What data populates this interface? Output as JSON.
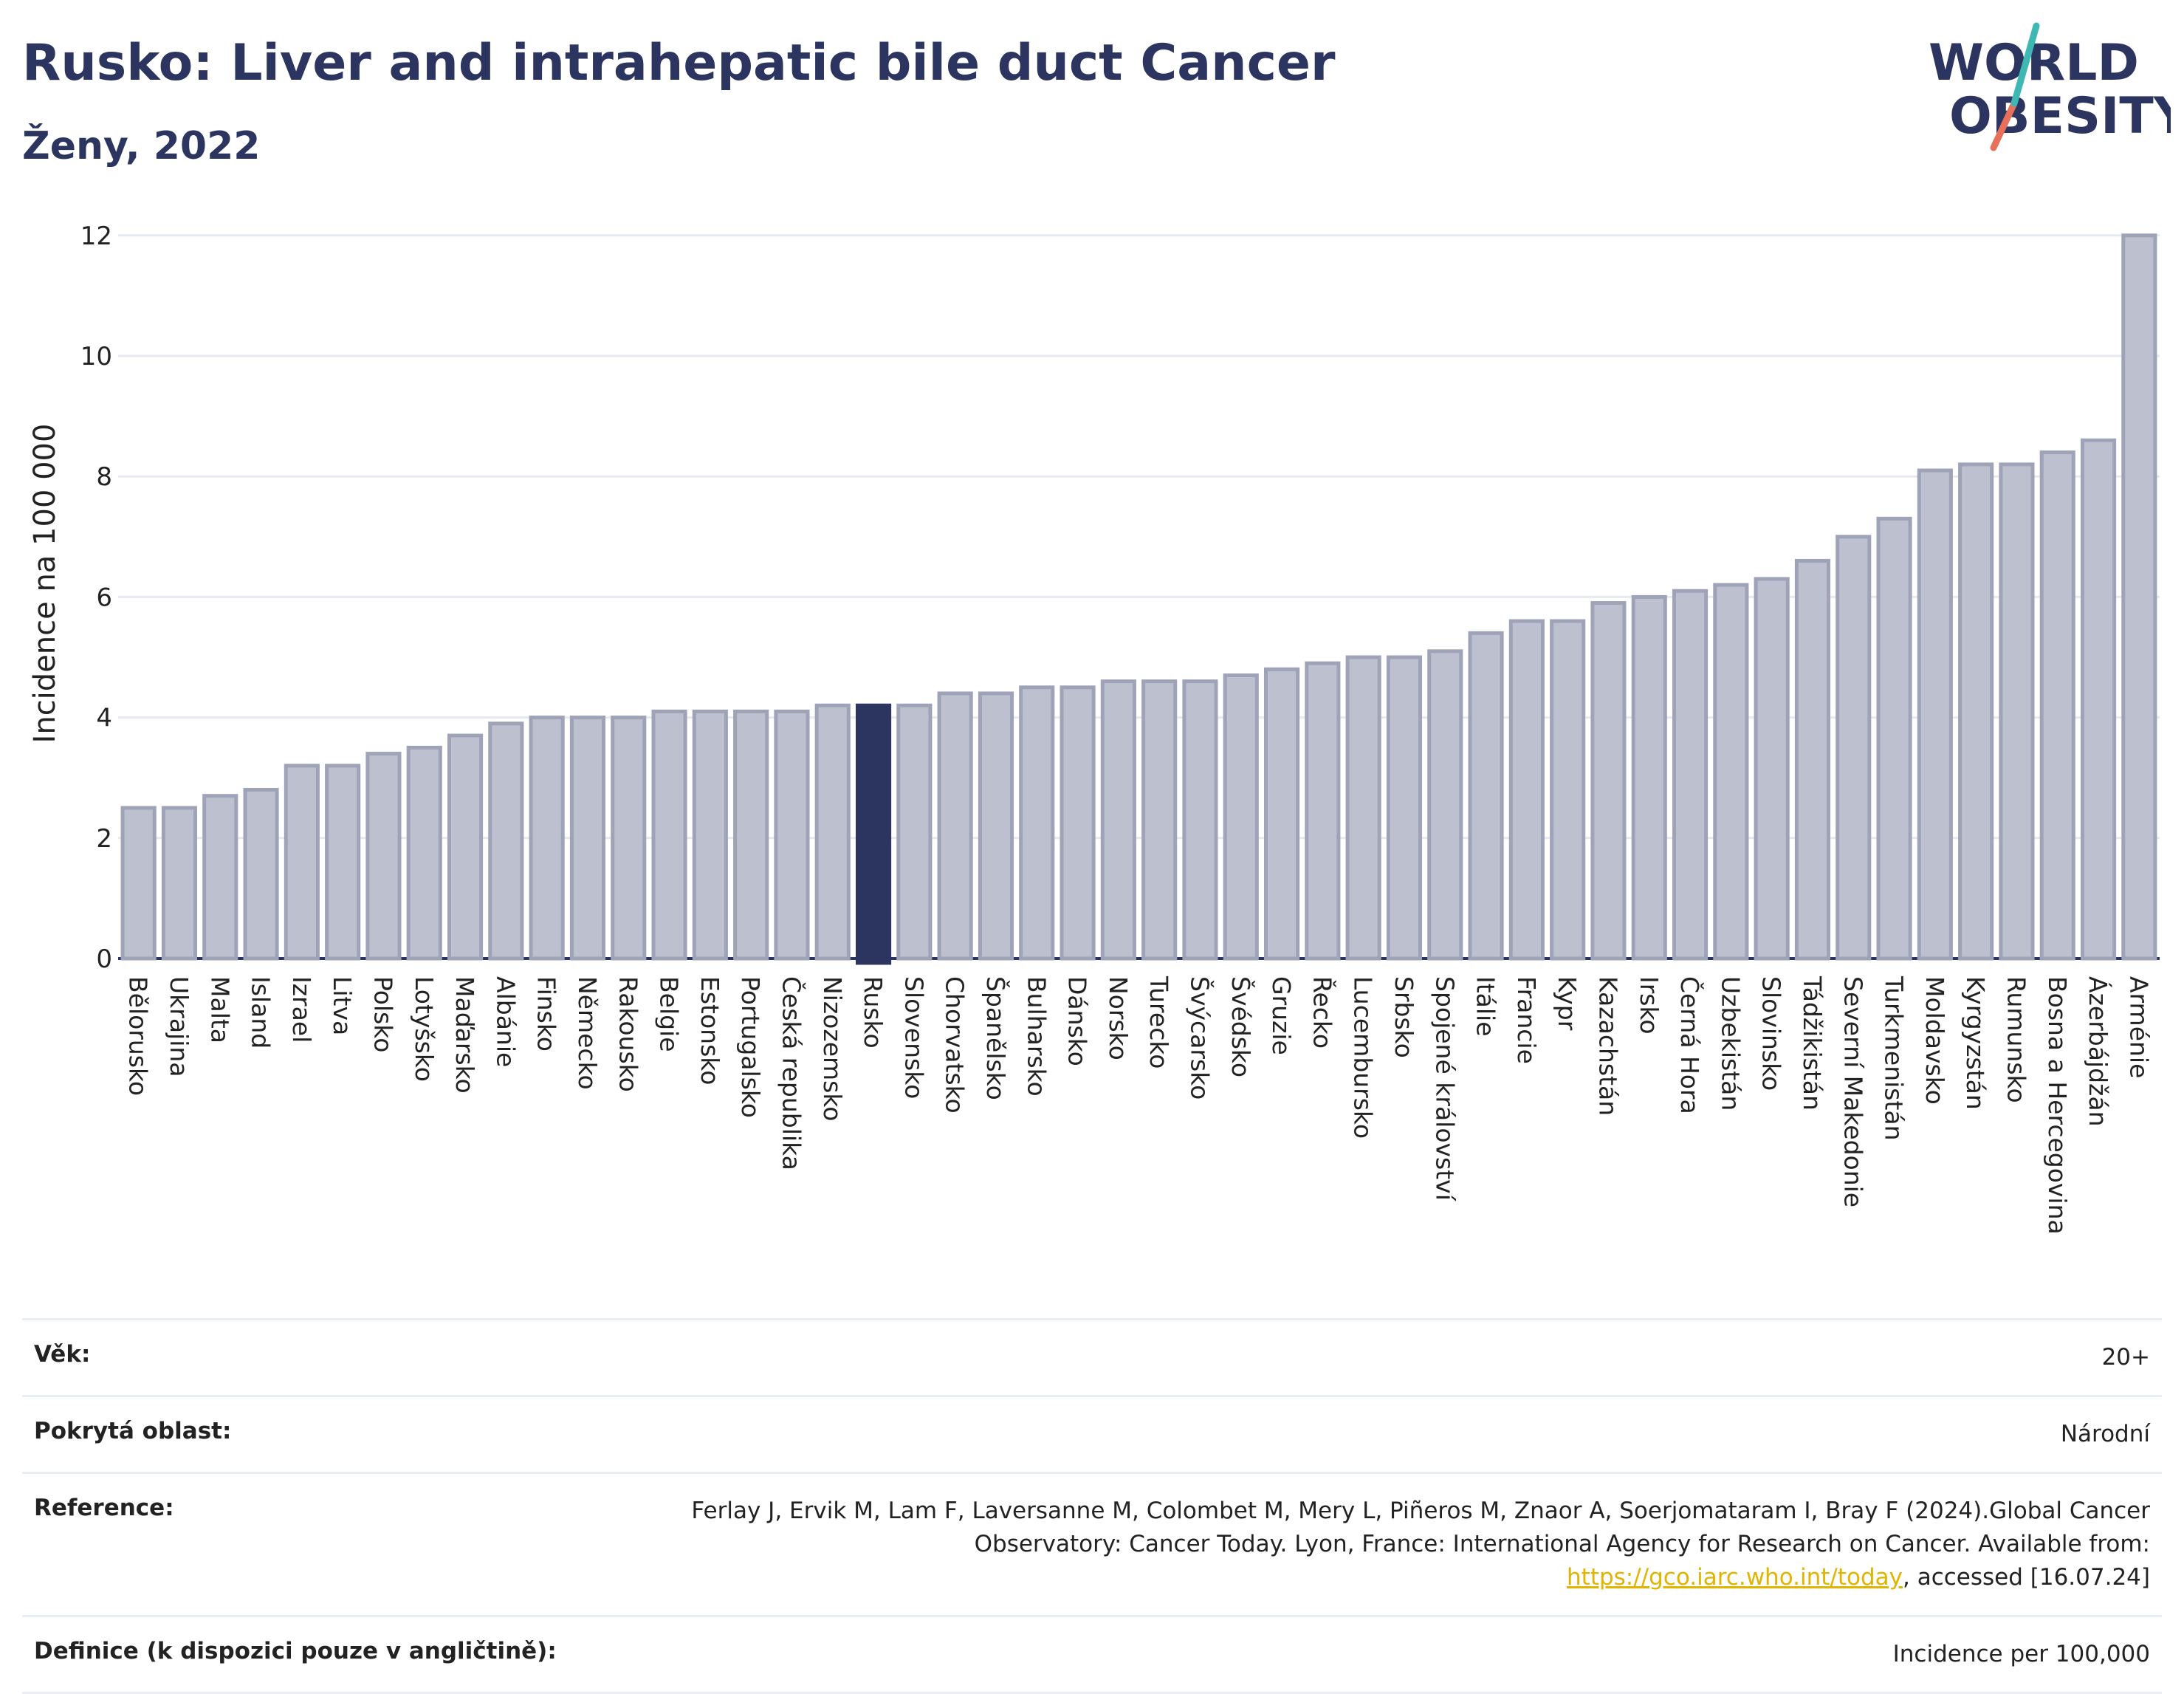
{
  "header": {
    "title": "Rusko: Liver and intrahepatic bile duct Cancer",
    "subtitle": "Ženy, 2022",
    "logo_line1": "WORLD",
    "logo_line2": "OBESITY"
  },
  "colors": {
    "bar": "#bcc0cf",
    "bar_border": "#9fa3b8",
    "highlight": "#2b3560",
    "title": "#2b3560",
    "logo_slash_teal": "#3fb8b4",
    "logo_slash_red": "#e8705a"
  },
  "chart_data": {
    "type": "bar",
    "title": "Rusko: Liver and intrahepatic bile duct Cancer",
    "subtitle": "Ženy, 2022",
    "xlabel": "",
    "ylabel": "Incidence na 100 000",
    "ylim": [
      0,
      12.5
    ],
    "yticks": [
      0,
      2,
      4,
      6,
      8,
      10,
      12
    ],
    "grid": true,
    "highlight": "Rusko",
    "categories": [
      "Bělorusko",
      "Ukrajina",
      "Malta",
      "Island",
      "Izrael",
      "Litva",
      "Polsko",
      "Lotyšsko",
      "Maďarsko",
      "Albánie",
      "Finsko",
      "Německo",
      "Rakousko",
      "Belgie",
      "Estonsko",
      "Portugalsko",
      "Česká republika",
      "Nizozemsko",
      "Rusko",
      "Slovensko",
      "Chorvatsko",
      "Španělsko",
      "Bulharsko",
      "Dánsko",
      "Norsko",
      "Turecko",
      "Švýcarsko",
      "Švédsko",
      "Gruzie",
      "Řecko",
      "Lucembursko",
      "Srbsko",
      "Spojené království",
      "Itálie",
      "Francie",
      "Kypr",
      "Kazachstán",
      "Irsko",
      "Černá Hora",
      "Uzbekistán",
      "Slovinsko",
      "Tádžikistán",
      "Severní Makedonie",
      "Turkmenistán",
      "Moldavsko",
      "Kyrgyzstán",
      "Rumunsko",
      "Bosna a Hercegovina",
      "Ázerbájdžán",
      "Arménie"
    ],
    "values": [
      2.5,
      2.5,
      2.7,
      2.8,
      3.2,
      3.2,
      3.4,
      3.5,
      3.7,
      3.9,
      4.0,
      4.0,
      4.0,
      4.1,
      4.1,
      4.1,
      4.1,
      4.2,
      4.2,
      4.2,
      4.4,
      4.4,
      4.5,
      4.5,
      4.6,
      4.6,
      4.6,
      4.7,
      4.8,
      4.9,
      5.0,
      5.0,
      5.1,
      5.4,
      5.6,
      5.6,
      5.9,
      6.0,
      6.1,
      6.2,
      6.3,
      6.6,
      7.0,
      7.3,
      8.1,
      8.2,
      8.2,
      8.4,
      8.6,
      12.0
    ]
  },
  "info": {
    "rows": [
      {
        "key": "Věk:",
        "value": "20+"
      },
      {
        "key": "Pokrytá oblast:",
        "value": "Národní"
      },
      {
        "key": "Reference:",
        "value_pre": "Ferlay J, Ervik M, Lam F, Laversanne M, Colombet M, Mery L, Piñeros M, Znaor A, Soerjomataram I, Bray F (2024).Global Cancer Observatory: Cancer Today. Lyon, France: International Agency for Research on Cancer. Available from: ",
        "link": "https://gco.iarc.who.int/today",
        "value_post": ", accessed [16.07.24]"
      },
      {
        "key": "Definice (k dispozici pouze v angličtině):",
        "value": "Incidence per 100,000"
      }
    ]
  }
}
